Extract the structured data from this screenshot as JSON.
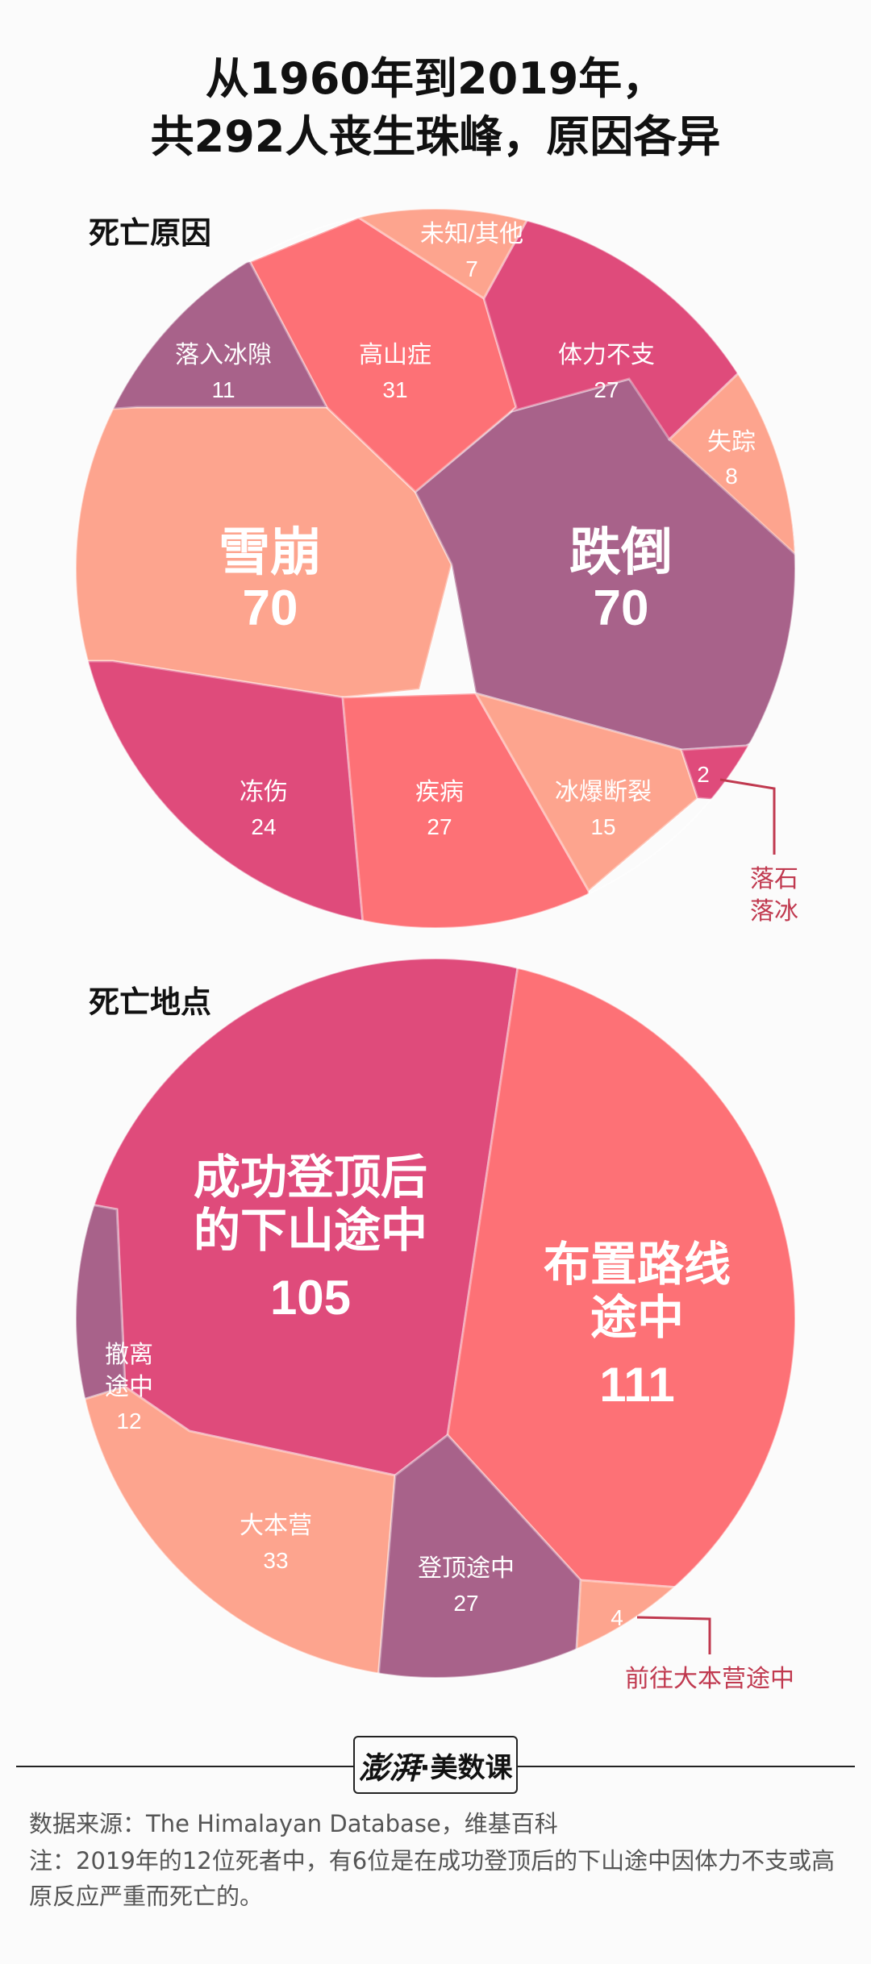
{
  "header": {
    "title_line1": "从1960年到2019年，",
    "title_line2": "共292人丧生珠峰，原因各异"
  },
  "sections": {
    "cause_label": "死亡原因",
    "location_label": "死亡地点"
  },
  "chart_data": [
    {
      "type": "voronoi-treemap",
      "title": "死亡原因",
      "categories": [
        "雪崩",
        "跌倒",
        "高山症",
        "体力不支",
        "疾病",
        "冻伤",
        "冰爆断裂",
        "落入冰隙",
        "失踪",
        "未知/其他",
        "落石落冰"
      ],
      "values": [
        70,
        70,
        31,
        27,
        27,
        24,
        15,
        11,
        8,
        7,
        2
      ],
      "total": 292
    },
    {
      "type": "voronoi-treemap",
      "title": "死亡地点",
      "categories": [
        "布置路线途中",
        "成功登顶后的下山途中",
        "大本营",
        "登顶途中",
        "撤离途中",
        "前往大本营途中"
      ],
      "values": [
        111,
        105,
        33,
        27,
        12,
        4
      ],
      "total": 292
    }
  ],
  "labels": {
    "avalanche": {
      "name": "雪崩",
      "value": "70"
    },
    "fall": {
      "name": "跌倒",
      "value": "70"
    },
    "altitude": {
      "name": "高山症",
      "value": "31"
    },
    "exhaustion": {
      "name": "体力不支",
      "value": "27"
    },
    "illness": {
      "name": "疾病",
      "value": "27"
    },
    "frostbite": {
      "name": "冻伤",
      "value": "24"
    },
    "serac": {
      "name": "冰爆断裂",
      "value": "15"
    },
    "crevasse": {
      "name": "落入冰隙",
      "value": "11"
    },
    "missing": {
      "name": "失踪",
      "value": "8"
    },
    "unknown": {
      "name": "未知/其他",
      "value": "7"
    },
    "rockfall": {
      "name_line1": "落石",
      "name_line2": "落冰",
      "value": "2"
    },
    "route": {
      "name_line1": "布置路线",
      "name_line2": "途中",
      "value": "111"
    },
    "descent": {
      "name_line1": "成功登顶后",
      "name_line2": "的下山途中",
      "value": "105"
    },
    "basecamp": {
      "name": "大本营",
      "value": "33"
    },
    "ascent": {
      "name": "登顶途中",
      "value": "27"
    },
    "evacuation": {
      "name_line1": "撤离",
      "name_line2": "途中",
      "value": "12"
    },
    "to_basecamp": {
      "name": "前往大本营途中",
      "value": "4"
    }
  },
  "colors": {
    "coral": "#fd7176",
    "salmon": "#fda48e",
    "magenta": "#df4b7b",
    "mauve": "#a8628a"
  },
  "footer": {
    "logo_brush": "澎湃",
    "logo_text": "·美数课",
    "source": "数据来源：The Himalayan Database，维基百科",
    "note": "注：2019年的12位死者中，有6位是在成功登顶后的下山途中因体力不支或高原反应严重而死亡的。"
  }
}
